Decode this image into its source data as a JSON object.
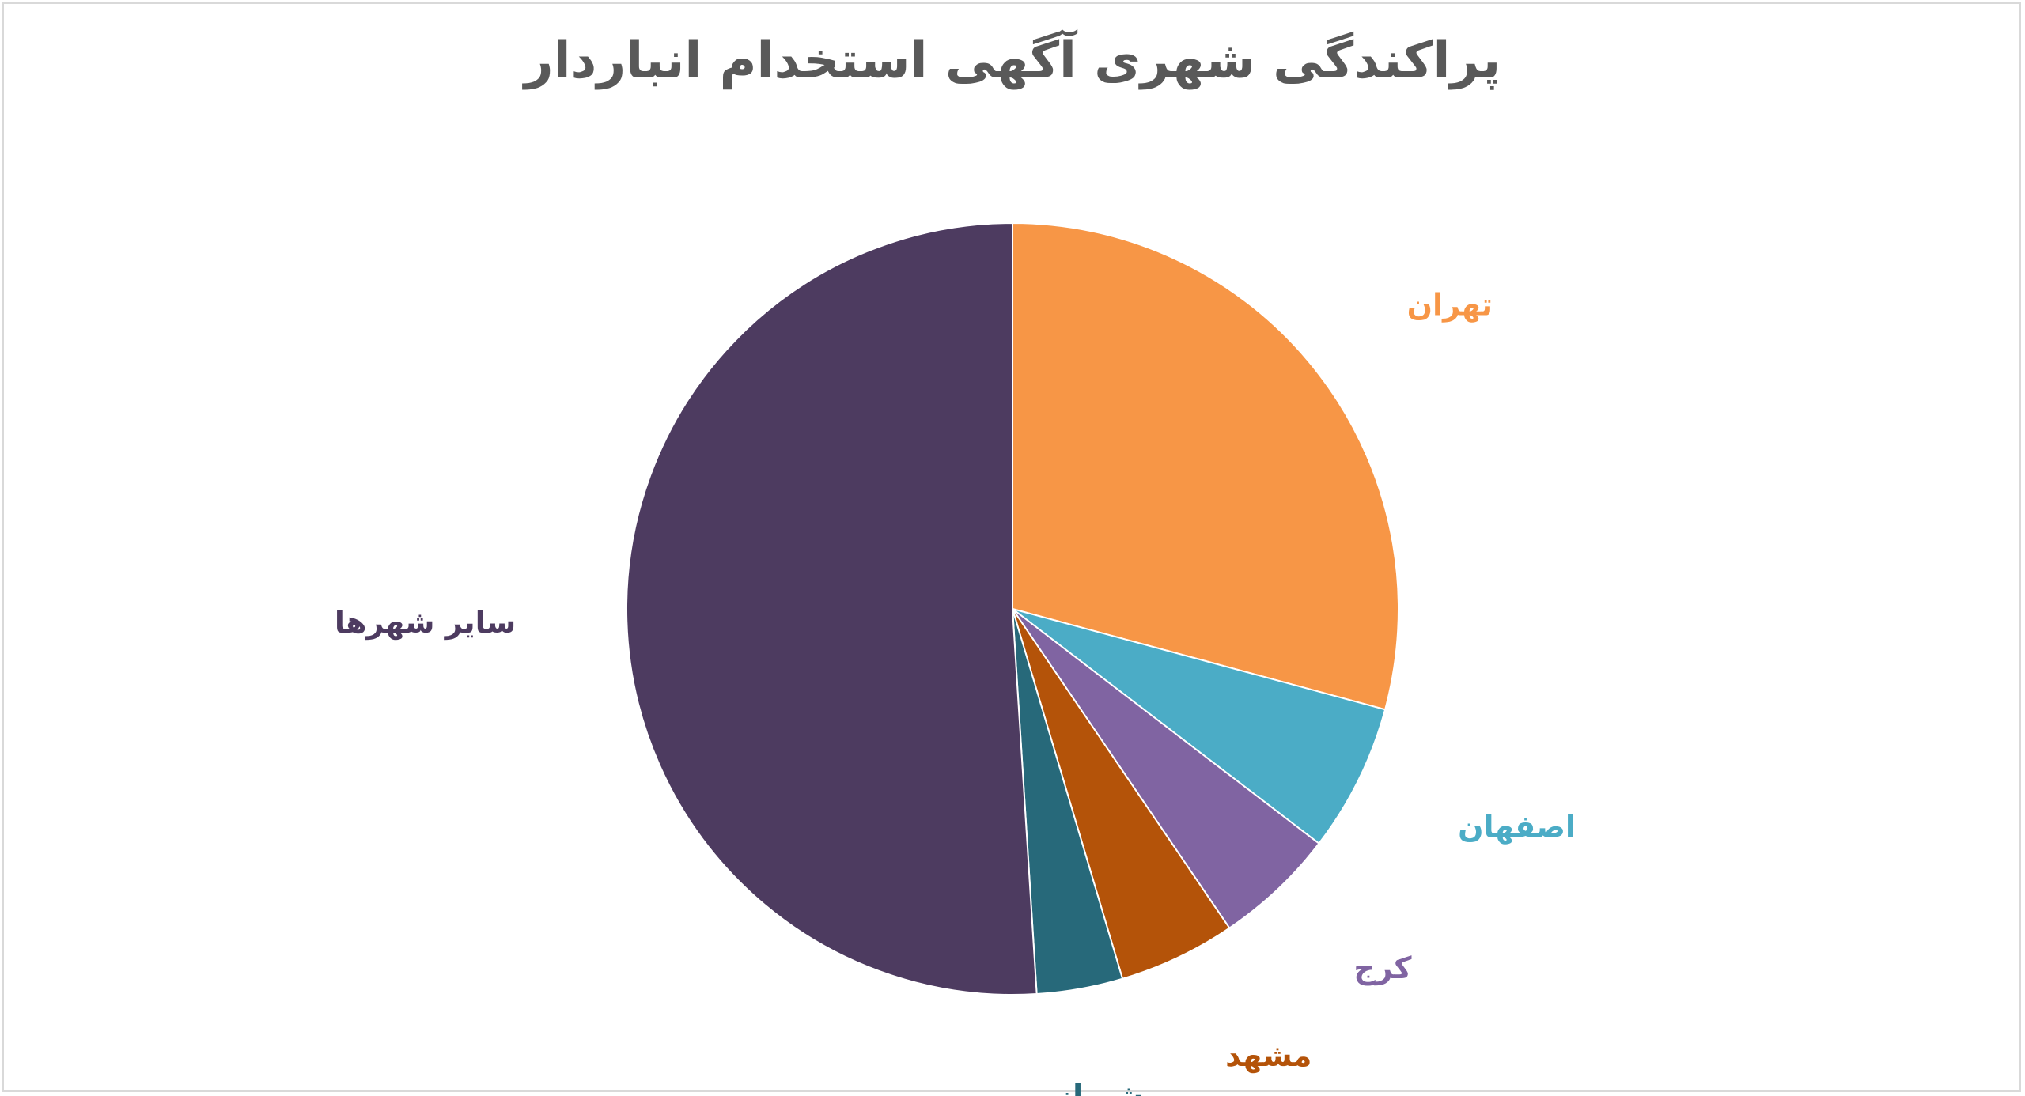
{
  "chart_data": {
    "type": "pie",
    "title": "پراکندگی شهری آگهی استخدام انباردار",
    "start_angle_deg": 0,
    "direction": "clockwise",
    "slices": [
      {
        "label": "تهران",
        "value": 29.2,
        "color": "#F79646"
      },
      {
        "label": "اصفهان",
        "value": 6.2,
        "color": "#4BACC6"
      },
      {
        "label": "کرج",
        "value": 5.1,
        "color": "#8064A2"
      },
      {
        "label": "مشهد",
        "value": 4.9,
        "color": "#B45309"
      },
      {
        "label": "شیراز",
        "value": 3.6,
        "color": "#27697A"
      },
      {
        "label": "سایر شهرها",
        "value": 51.0,
        "color": "#4D3B60"
      }
    ],
    "legend": "none",
    "data_labels": "category-outside"
  }
}
